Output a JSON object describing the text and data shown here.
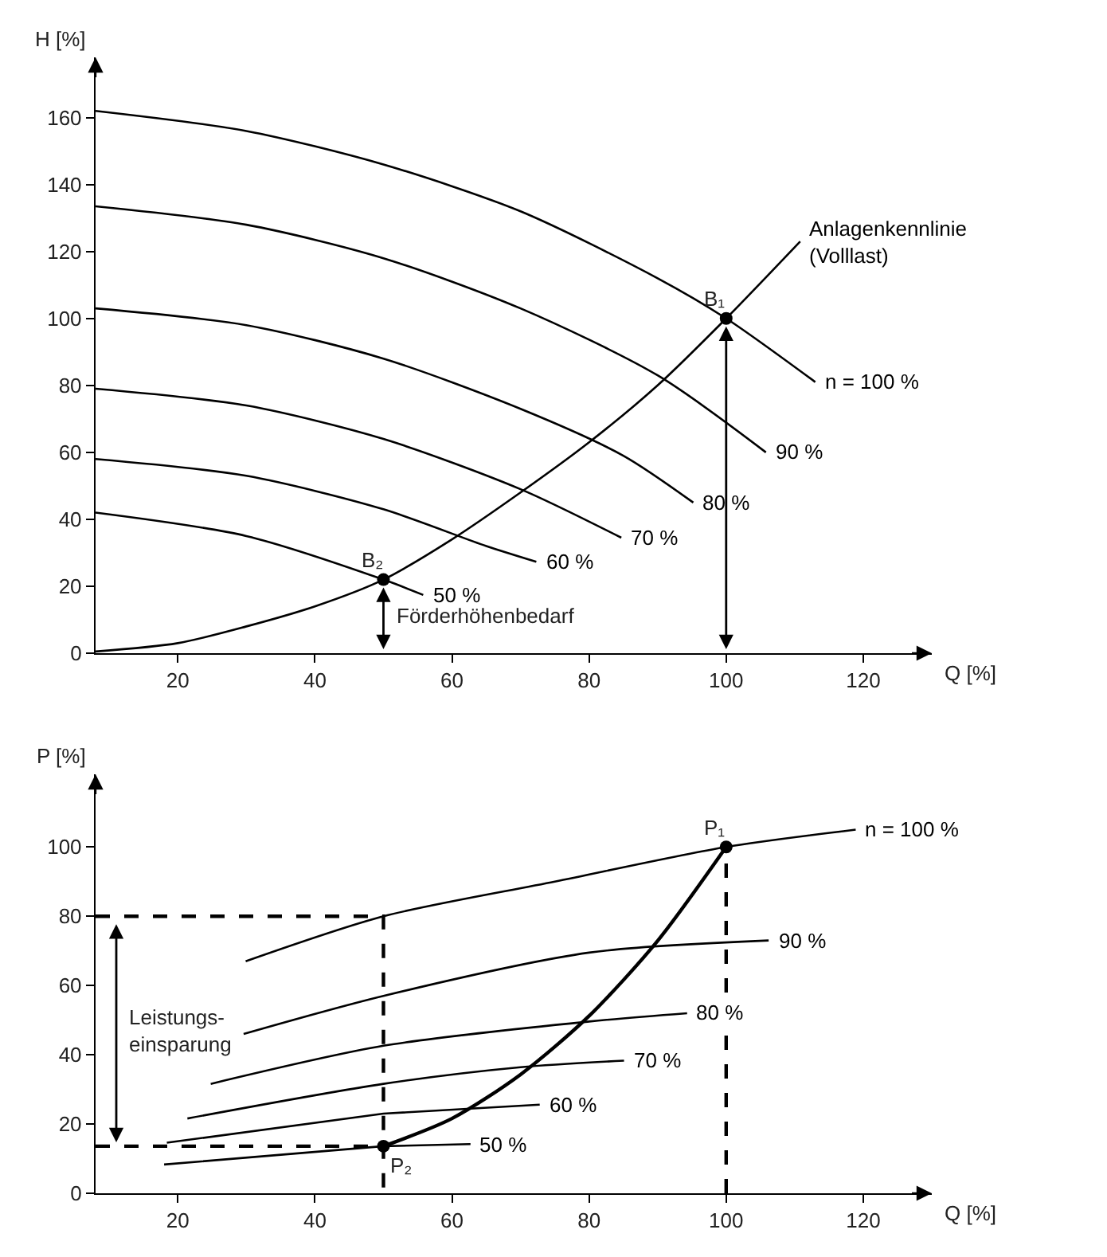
{
  "chart_data": [
    {
      "type": "line",
      "xlabel": "Q [%]",
      "ylabel": "H [%]",
      "xlim": [
        8,
        130
      ],
      "xticks": [
        20,
        40,
        60,
        80,
        100,
        120
      ],
      "ylim": [
        0,
        178
      ],
      "yticks": [
        0,
        20,
        40,
        60,
        80,
        100,
        120,
        140,
        160
      ],
      "series": [
        {
          "name": "n = 100 %",
          "color": "#000000",
          "x": [
            8,
            30,
            50,
            70,
            90,
            100,
            113
          ],
          "values": [
            162,
            156,
            146,
            132,
            112,
            100,
            81
          ]
        },
        {
          "name": "90 %",
          "color": "#000000",
          "x": [
            8,
            30,
            50,
            70,
            90,
            105.8
          ],
          "values": [
            133.5,
            128,
            118,
            103,
            83,
            60
          ]
        },
        {
          "name": "80 %",
          "color": "#000000",
          "x": [
            8,
            30,
            50,
            70,
            85,
            95.2
          ],
          "values": [
            103,
            98,
            88,
            73,
            59,
            45
          ]
        },
        {
          "name": "70 %",
          "color": "#000000",
          "x": [
            8,
            30,
            50,
            70,
            84.7
          ],
          "values": [
            79,
            74,
            64,
            49,
            34.5
          ]
        },
        {
          "name": "60 %",
          "color": "#000000",
          "x": [
            8,
            30,
            50,
            65,
            72.3
          ],
          "values": [
            58,
            53,
            43,
            32,
            27.3
          ]
        },
        {
          "name": "50 %",
          "color": "#000000",
          "x": [
            8,
            30,
            50,
            55.8
          ],
          "values": [
            42,
            35,
            22,
            17.4
          ]
        },
        {
          "name": "Anlagenkennlinie\n(Volllast)",
          "color": "#000000",
          "x": [
            8,
            20,
            30,
            40,
            50,
            60,
            70,
            80,
            90,
            100,
            110.8
          ],
          "values": [
            0.5,
            3,
            8,
            14,
            22,
            34,
            48,
            63,
            80,
            100,
            123
          ]
        },
        {
          "type": "scatter",
          "color": "#000000",
          "x": [
            50,
            100
          ],
          "values": [
            22,
            100
          ],
          "marker": "circle"
        }
      ],
      "annotations": [
        "B₂",
        "B₁",
        "Förderhöhenbedarf"
      ]
    },
    {
      "type": "line",
      "xlabel": "Q [%]",
      "ylabel": "P [%]",
      "xlim": [
        8,
        130
      ],
      "xticks": [
        20,
        40,
        60,
        80,
        100,
        120
      ],
      "ylim": [
        0,
        121
      ],
      "yticks": [
        0,
        20,
        40,
        60,
        80,
        100
      ],
      "series": [
        {
          "name": "n = 100 %",
          "color": "#000000",
          "x": [
            29.9,
            50,
            75,
            100,
            118.9
          ],
          "values": [
            67,
            80,
            90,
            100,
            105
          ]
        },
        {
          "name": "90 %",
          "color": "#000000",
          "x": [
            29.6,
            50,
            80,
            106.2
          ],
          "values": [
            46,
            57,
            69.5,
            73
          ]
        },
        {
          "name": "80 %",
          "color": "#000000",
          "x": [
            24.8,
            50,
            80,
            94.3
          ],
          "values": [
            31.6,
            42.6,
            49.6,
            52
          ]
        },
        {
          "name": "70 %",
          "color": "#000000",
          "x": [
            21.4,
            50,
            70,
            85.1
          ],
          "values": [
            21.6,
            31.6,
            36.4,
            38.3
          ]
        },
        {
          "name": "60 %",
          "color": "#000000",
          "x": [
            18.4,
            50,
            72.8
          ],
          "values": [
            14.6,
            23,
            25.6
          ]
        },
        {
          "name": "50 %",
          "color": "#000000",
          "x": [
            18,
            50,
            62.7
          ],
          "values": [
            8.3,
            13.6,
            14.2
          ]
        },
        {
          "color": "#000000",
          "x": [
            50,
            60,
            70,
            80,
            90,
            100
          ],
          "values": [
            13.6,
            21.6,
            34.3,
            51.2,
            72.9,
            100
          ]
        },
        {
          "color": "#000000",
          "x": [
            8,
            50,
            50
          ],
          "values": [
            80,
            80,
            0
          ],
          "line_style": "dashed"
        },
        {
          "color": "#000000",
          "x": [
            8,
            50
          ],
          "values": [
            13.6,
            13.6
          ],
          "line_style": "dashed"
        },
        {
          "color": "#000000",
          "x": [
            100,
            100
          ],
          "values": [
            0,
            100
          ],
          "line_style": "dashed"
        },
        {
          "type": "scatter",
          "color": "#000000",
          "x": [
            50,
            100
          ],
          "values": [
            13.6,
            100
          ],
          "marker": "circle"
        }
      ],
      "annotations": [
        "P₂",
        "P₁",
        "Leistungs-\neinsparung"
      ]
    }
  ]
}
